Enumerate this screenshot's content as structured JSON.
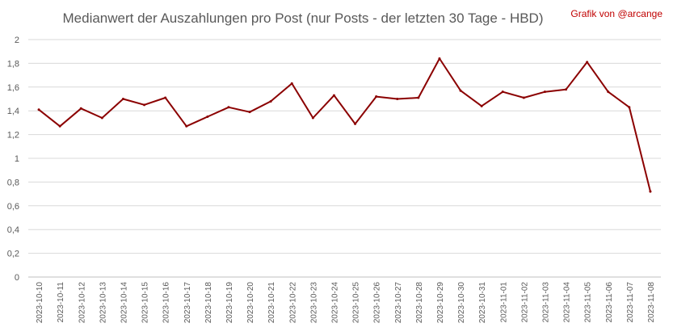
{
  "chart_data": {
    "type": "line",
    "title": "Medianwert der Auszahlungen pro Post (nur Posts - der letzten 30 Tage - HBD)",
    "credit": "Grafik von @arcange",
    "xlabel": "",
    "ylabel": "",
    "ylim": [
      0,
      2
    ],
    "y_ticks": [
      "0",
      "0,2",
      "0,4",
      "0,6",
      "0,8",
      "1",
      "1,2",
      "1,4",
      "1,6",
      "1,8",
      "2"
    ],
    "grid": true,
    "legend": "none",
    "line_color": "#8b0000",
    "categories": [
      "2023-10-10",
      "2023-10-11",
      "2023-10-12",
      "2023-10-13",
      "2023-10-14",
      "2023-10-15",
      "2023-10-16",
      "2023-10-17",
      "2023-10-18",
      "2023-10-19",
      "2023-10-20",
      "2023-10-21",
      "2023-10-22",
      "2023-10-23",
      "2023-10-24",
      "2023-10-25",
      "2023-10-26",
      "2023-10-27",
      "2023-10-28",
      "2023-10-29",
      "2023-10-30",
      "2023-10-31",
      "2023-11-01",
      "2023-11-02",
      "2023-11-03",
      "2023-11-04",
      "2023-11-05",
      "2023-11-06",
      "2023-11-07",
      "2023-11-08"
    ],
    "series": [
      {
        "values": [
          1.41,
          1.27,
          1.42,
          1.34,
          1.5,
          1.45,
          1.51,
          1.27,
          1.35,
          1.43,
          1.39,
          1.48,
          1.63,
          1.34,
          1.53,
          1.29,
          1.52,
          1.5,
          1.51,
          1.84,
          1.57,
          1.44,
          1.56,
          1.51,
          1.56,
          1.58,
          1.81,
          1.56,
          1.43,
          0.72
        ]
      }
    ]
  }
}
